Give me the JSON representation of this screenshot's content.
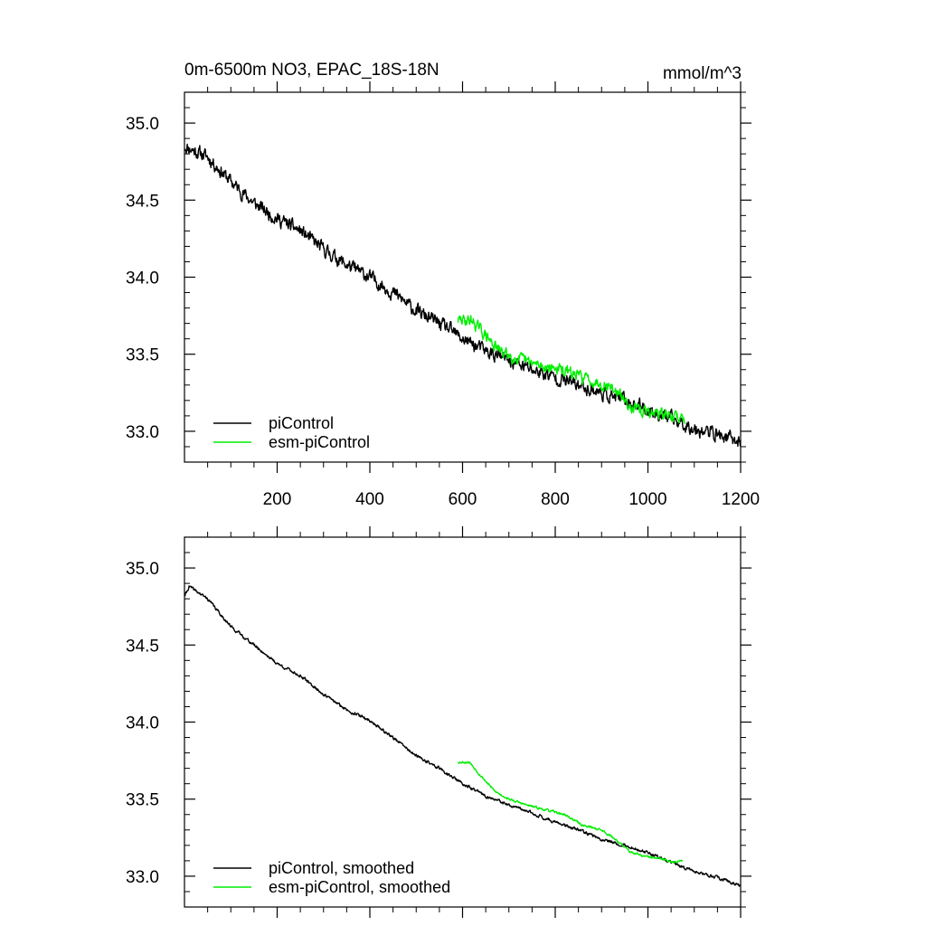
{
  "header": {
    "title": "0m-6500m NO3, EPAC_18S-18N",
    "units": "mmol/m^3"
  },
  "colors": {
    "picontrol": "#000000",
    "esm_picontrol": "#00ee00"
  },
  "chart_data": [
    {
      "type": "line",
      "title": "0m-6500m NO3, EPAC_18S-18N",
      "units": "mmol/m^3",
      "xlim": [
        0,
        1200
      ],
      "ylim": [
        32.8,
        35.2
      ],
      "x_ticks": [
        200,
        400,
        600,
        800,
        1000,
        1200
      ],
      "x_tick_labels": [
        "200",
        "400",
        "600",
        "800",
        "1000",
        "1200"
      ],
      "y_ticks": [
        33.0,
        33.5,
        34.0,
        34.5,
        35.0
      ],
      "y_tick_labels": [
        "33.0",
        "33.5",
        "34.0",
        "34.5",
        "35.0"
      ],
      "legend_position": "bottom-left",
      "series": [
        {
          "name": "piControl",
          "color": "#000000",
          "noise": 0.035,
          "seed": 11,
          "points": [
            [
              1,
              34.85
            ],
            [
              50,
              34.78
            ],
            [
              100,
              34.62
            ],
            [
              150,
              34.48
            ],
            [
              200,
              34.38
            ],
            [
              250,
              34.3
            ],
            [
              300,
              34.18
            ],
            [
              350,
              34.08
            ],
            [
              400,
              34.0
            ],
            [
              450,
              33.9
            ],
            [
              500,
              33.78
            ],
            [
              550,
              33.7
            ],
            [
              600,
              33.6
            ],
            [
              650,
              33.52
            ],
            [
              700,
              33.46
            ],
            [
              750,
              33.4
            ],
            [
              800,
              33.35
            ],
            [
              850,
              33.3
            ],
            [
              900,
              33.25
            ],
            [
              950,
              33.2
            ],
            [
              1000,
              33.14
            ],
            [
              1050,
              33.08
            ],
            [
              1100,
              33.02
            ],
            [
              1150,
              32.98
            ],
            [
              1200,
              32.93
            ]
          ]
        },
        {
          "name": "esm-piControl",
          "color": "#00ee00",
          "noise": 0.03,
          "seed": 29,
          "points": [
            [
              590,
              33.72
            ],
            [
              620,
              33.72
            ],
            [
              650,
              33.62
            ],
            [
              680,
              33.52
            ],
            [
              720,
              33.47
            ],
            [
              760,
              33.43
            ],
            [
              800,
              33.41
            ],
            [
              840,
              33.37
            ],
            [
              880,
              33.33
            ],
            [
              920,
              33.29
            ],
            [
              950,
              33.2
            ],
            [
              980,
              33.13
            ],
            [
              1020,
              33.12
            ],
            [
              1050,
              33.1
            ],
            [
              1080,
              33.08
            ]
          ]
        }
      ]
    },
    {
      "type": "line",
      "xlim": [
        0,
        1200
      ],
      "ylim": [
        32.8,
        35.2
      ],
      "x_ticks": [
        200,
        400,
        600,
        800,
        1000,
        1200
      ],
      "y_ticks": [
        33.0,
        33.5,
        34.0,
        34.5,
        35.0
      ],
      "y_tick_labels": [
        "33.0",
        "33.5",
        "34.0",
        "34.5",
        "35.0"
      ],
      "legend_position": "bottom-left",
      "series": [
        {
          "name": "piControl, smoothed",
          "color": "#000000",
          "noise": 0.008,
          "seed": 41,
          "points": [
            [
              1,
              34.82
            ],
            [
              10,
              34.88
            ],
            [
              50,
              34.8
            ],
            [
              100,
              34.62
            ],
            [
              150,
              34.5
            ],
            [
              200,
              34.38
            ],
            [
              250,
              34.3
            ],
            [
              300,
              34.18
            ],
            [
              350,
              34.08
            ],
            [
              400,
              34.01
            ],
            [
              450,
              33.9
            ],
            [
              500,
              33.78
            ],
            [
              550,
              33.7
            ],
            [
              600,
              33.6
            ],
            [
              650,
              33.52
            ],
            [
              700,
              33.46
            ],
            [
              750,
              33.41
            ],
            [
              800,
              33.35
            ],
            [
              850,
              33.3
            ],
            [
              900,
              33.24
            ],
            [
              950,
              33.2
            ],
            [
              1000,
              33.15
            ],
            [
              1050,
              33.09
            ],
            [
              1100,
              33.03
            ],
            [
              1150,
              32.99
            ],
            [
              1200,
              32.94
            ]
          ]
        },
        {
          "name": "esm-piControl, smoothed",
          "color": "#00ee00",
          "noise": 0.006,
          "seed": 53,
          "points": [
            [
              590,
              33.74
            ],
            [
              615,
              33.74
            ],
            [
              640,
              33.65
            ],
            [
              670,
              33.55
            ],
            [
              700,
              33.5
            ],
            [
              740,
              33.46
            ],
            [
              780,
              33.43
            ],
            [
              820,
              33.4
            ],
            [
              860,
              33.33
            ],
            [
              900,
              33.3
            ],
            [
              930,
              33.24
            ],
            [
              960,
              33.16
            ],
            [
              990,
              33.13
            ],
            [
              1030,
              33.11
            ],
            [
              1060,
              33.09
            ],
            [
              1075,
              33.1
            ]
          ]
        }
      ]
    }
  ]
}
